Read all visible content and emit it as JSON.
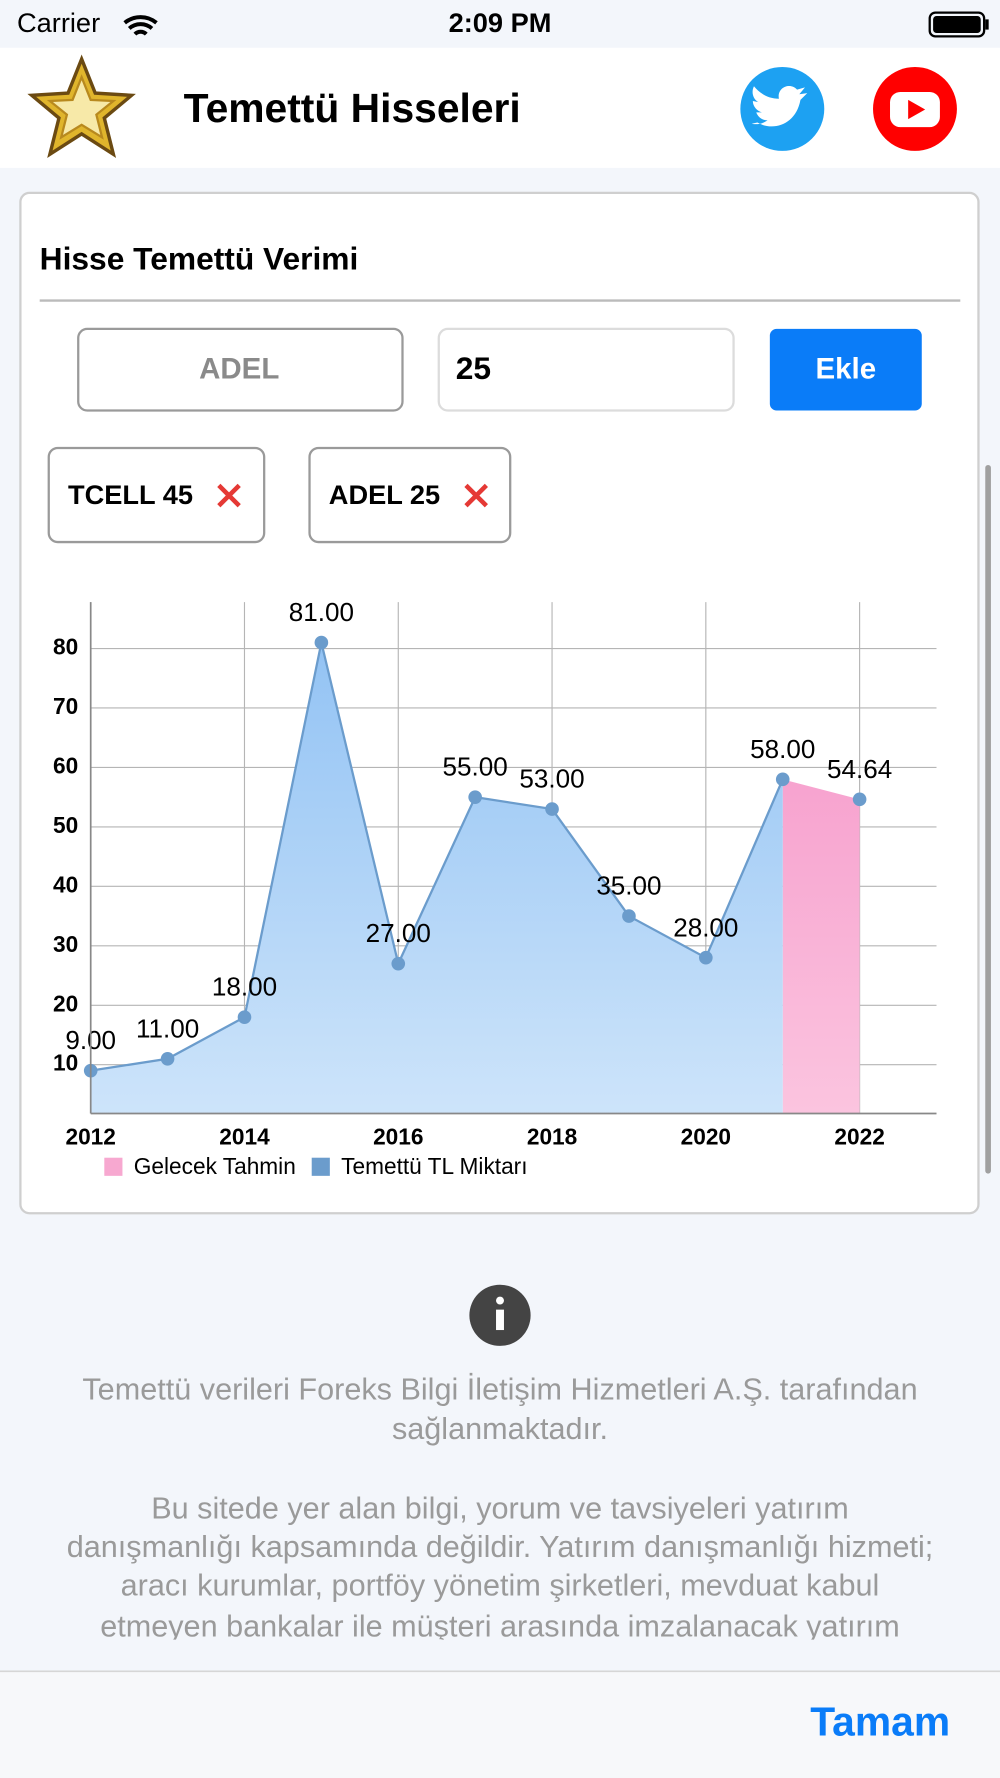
{
  "status_bar": {
    "carrier": "Carrier",
    "time": "2:09 PM"
  },
  "header": {
    "title": "Temettü Hisseleri"
  },
  "card": {
    "title": "Hisse Temettü Verimi",
    "stock_input": "ADEL",
    "amount_input": "25",
    "add_button": "Ekle",
    "chips": [
      "TCELL 45",
      "ADEL 25"
    ]
  },
  "chart_data": {
    "type": "area",
    "x": [
      2012,
      2013,
      2014,
      2015,
      2016,
      2017,
      2018,
      2019,
      2020,
      2021,
      2022
    ],
    "xlim": [
      2012,
      2023
    ],
    "xticks": [
      2012,
      2014,
      2016,
      2018,
      2020,
      2022
    ],
    "ylim": [
      1.8,
      87.8
    ],
    "yticks": [
      10,
      20,
      30,
      40,
      50,
      60,
      70,
      80
    ],
    "grid": true,
    "legend": "bottom-left",
    "series": [
      {
        "name": "Gelecek Tahmin",
        "color": "#f7a8d0",
        "values": [
          null,
          null,
          null,
          null,
          null,
          null,
          null,
          null,
          null,
          null,
          54.64
        ],
        "value_labels": [
          null,
          null,
          null,
          null,
          null,
          null,
          null,
          null,
          null,
          null,
          "54.64"
        ]
      },
      {
        "name": "Temettü TL Miktarı",
        "color": "#6b9ccc",
        "values": [
          9,
          11,
          18,
          81,
          27,
          55,
          53,
          35,
          28,
          58,
          null
        ],
        "value_labels": [
          "9.00",
          "11.00",
          "18.00",
          "81.00",
          "27.00",
          "55.00",
          "53.00",
          "35.00",
          "28.00",
          "58.00",
          null
        ]
      }
    ]
  },
  "info": {
    "paragraphs": [
      [
        "Temettü verileri Foreks Bilgi İletişim Hizmetleri A.Ş. tarafından",
        "sağlanmaktadır."
      ],
      [
        "Bu sitede yer alan bilgi, yorum ve tavsiyeleri yatırım",
        "danışmanlığı kapsamında değildir. Yatırım danışmanlığı hizmeti;",
        "aracı kurumlar, portföy yönetim şirketleri, mevduat kabul",
        "etmeyen bankalar ile müşteri arasında imzalanacak yatırım"
      ]
    ]
  },
  "footer": {
    "button": "Tamam"
  }
}
